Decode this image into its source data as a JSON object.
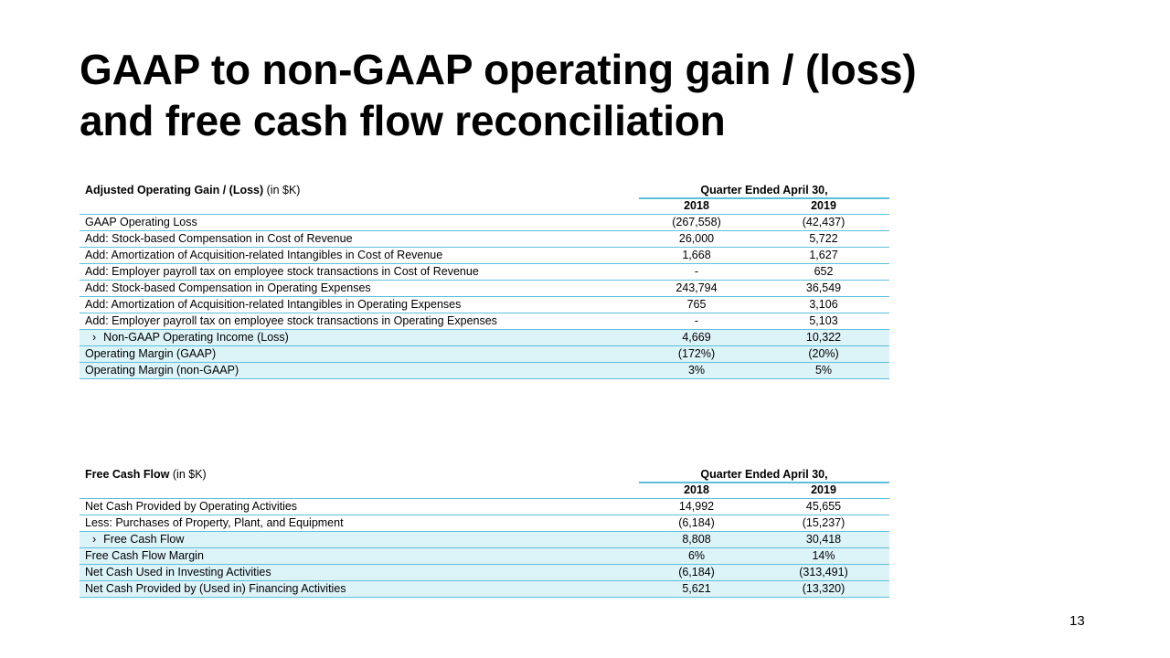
{
  "title_line1": "GAAP to non-GAAP operating gain / (loss)",
  "title_line2": "and free cash flow reconciliation",
  "page_number": "13",
  "colors": {
    "rule": "#5bbfdc",
    "shade": "#dcf3f8"
  },
  "table1": {
    "heading_bold": "Adjusted Operating Gain / (Loss)",
    "heading_unit": "(in $K)",
    "period_header": "Quarter Ended April 30,",
    "col1": "2018",
    "col2": "2019",
    "rows": [
      {
        "label": "GAAP Operating Loss",
        "v1": "(267,558)",
        "v2": "(42,437)"
      },
      {
        "label": "Add: Stock-based Compensation in Cost of Revenue",
        "v1": "26,000",
        "v2": "5,722"
      },
      {
        "label": "Add: Amortization of Acquisition-related Intangibles in Cost of Revenue",
        "v1": "1,668",
        "v2": "1,627"
      },
      {
        "label": "Add: Employer payroll tax on employee stock transactions in Cost of Revenue",
        "v1": "-",
        "v2": "652"
      },
      {
        "label": "Add: Stock-based Compensation in Operating Expenses",
        "v1": "243,794",
        "v2": "36,549"
      },
      {
        "label": "Add: Amortization of Acquisition-related Intangibles in Operating Expenses",
        "v1": "765",
        "v2": "3,106"
      },
      {
        "label": "Add: Employer payroll tax on employee stock transactions in Operating Expenses",
        "v1": "-",
        "v2": "5,103"
      },
      {
        "label": "Non-GAAP Operating Income (Loss)",
        "v1": "4,669",
        "v2": "10,322"
      },
      {
        "label": "Operating Margin (GAAP)",
        "v1": "(172%)",
        "v2": "(20%)"
      },
      {
        "label": "Operating Margin (non-GAAP)",
        "v1": "3%",
        "v2": "5%"
      }
    ]
  },
  "table2": {
    "heading_bold": "Free Cash Flow",
    "heading_unit": "(in $K)",
    "period_header": "Quarter Ended April 30,",
    "col1": "2018",
    "col2": "2019",
    "rows": [
      {
        "label": "Net Cash Provided by Operating Activities",
        "v1": "14,992",
        "v2": "45,655"
      },
      {
        "label": "Less: Purchases of Property, Plant, and Equipment",
        "v1": "(6,184)",
        "v2": "(15,237)"
      },
      {
        "label": "Free Cash Flow",
        "v1": "8,808",
        "v2": "30,418"
      },
      {
        "label": "Free Cash Flow Margin",
        "v1": "6%",
        "v2": "14%"
      },
      {
        "label": "Net Cash Used in Investing Activities",
        "v1": "(6,184)",
        "v2": "(313,491)"
      },
      {
        "label": "Net Cash Provided by (Used in) Financing Activities",
        "v1": "5,621",
        "v2": "(13,320)"
      }
    ]
  }
}
